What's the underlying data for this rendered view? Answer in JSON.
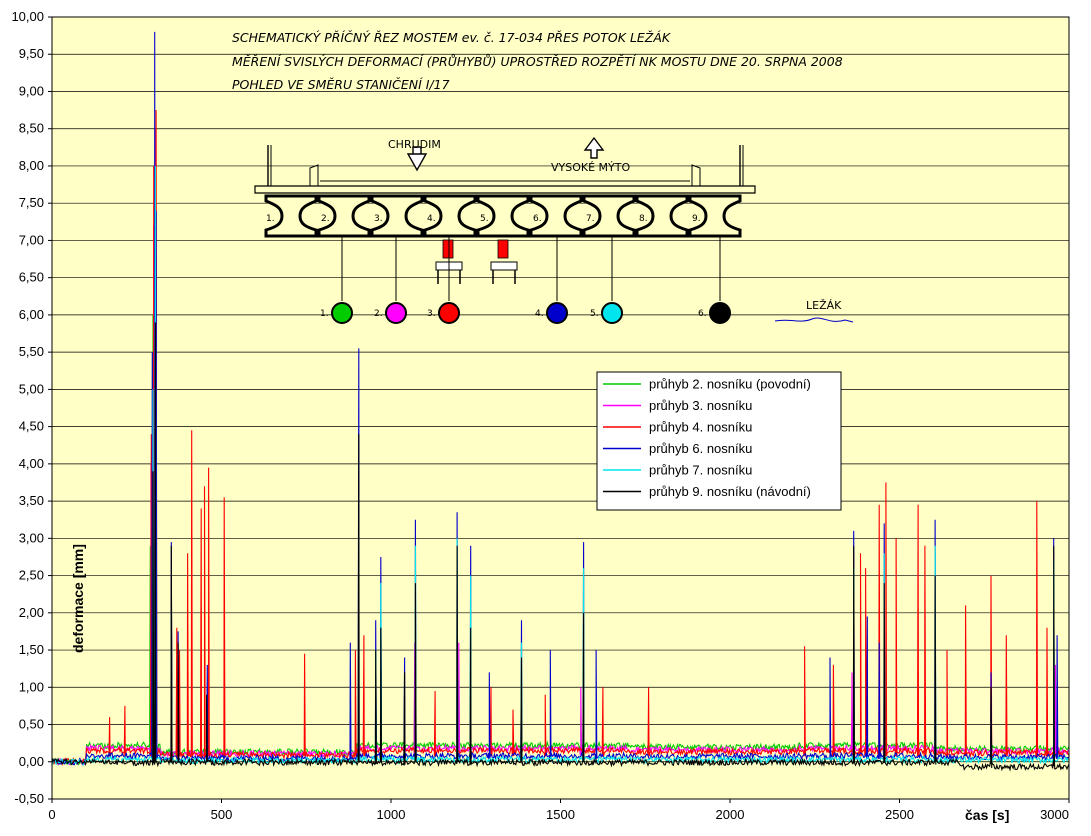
{
  "chart_data": {
    "type": "line",
    "title_lines": [
      "SCHEMATICKÝ PŘÍČNÝ ŘEZ MOSTEM ev. č. 17-034 PŘES POTOK LEŽÁK",
      "MĚŘENÍ SVISLÝCH DEFORMACÍ (PRŮHYBŮ) UPROSTŘED ROZPĚTÍ NK MOSTU DNE 20. SRPNA 2008",
      "POHLED VE SMĚRU STANIČENÍ I/17"
    ],
    "xlabel": "čas [s]",
    "ylabel": "deformace [mm]",
    "xlim": [
      0,
      3000
    ],
    "ylim": [
      -0.5,
      10.0
    ],
    "x_ticks": [
      "0",
      "500",
      "1000",
      "1500",
      "2000",
      "2500",
      "3000"
    ],
    "y_ticks": [
      "-0,50",
      "0,00",
      "0,50",
      "1,00",
      "1,50",
      "2,00",
      "2,50",
      "3,00",
      "3,50",
      "4,00",
      "4,50",
      "5,00",
      "5,50",
      "6,00",
      "6,50",
      "7,00",
      "7,50",
      "8,00",
      "8,50",
      "9,00",
      "9,50",
      "10,00"
    ],
    "grid": "horizontal",
    "legend_position": "center-right",
    "series": [
      {
        "name": "průhyb 2. nosníku (povodní)",
        "color": "#00cc00",
        "baseline": 0.22,
        "peaks": [
          [
            290,
            2.9
          ],
          [
            298,
            6.0
          ],
          [
            305,
            6.9
          ],
          [
            352,
            2.3
          ],
          [
            456,
            0.8
          ],
          [
            905,
            1.6
          ],
          [
            1070,
            1.1
          ],
          [
            1200,
            1.1
          ],
          [
            1560,
            0.6
          ],
          [
            2360,
            0.5
          ],
          [
            2455,
            0.4
          ],
          [
            2605,
            0.4
          ]
        ]
      },
      {
        "name": "průhyb 3. nosníku",
        "color": "#ff00ff",
        "baseline": 0.18,
        "peaks": [
          [
            292,
            4.0
          ],
          [
            300,
            7.2
          ],
          [
            306,
            8.5
          ],
          [
            352,
            2.5
          ],
          [
            458,
            1.0
          ],
          [
            905,
            2.4
          ],
          [
            1070,
            1.6
          ],
          [
            1200,
            1.6
          ],
          [
            1560,
            1.0
          ],
          [
            2360,
            1.2
          ],
          [
            2455,
            1.2
          ],
          [
            2605,
            1.2
          ],
          [
            2960,
            1.3
          ]
        ]
      },
      {
        "name": "průhyb 4. nosníku",
        "color": "#ff0000",
        "baseline": 0.15,
        "peaks": [
          [
            170,
            0.6
          ],
          [
            215,
            0.75
          ],
          [
            293,
            4.4
          ],
          [
            300,
            8.0
          ],
          [
            307,
            8.75
          ],
          [
            368,
            1.8
          ],
          [
            376,
            1.5
          ],
          [
            400,
            2.8
          ],
          [
            412,
            4.45
          ],
          [
            440,
            3.4
          ],
          [
            450,
            3.7
          ],
          [
            462,
            3.95
          ],
          [
            508,
            3.55
          ],
          [
            745,
            1.45
          ],
          [
            895,
            1.5
          ],
          [
            920,
            1.7
          ],
          [
            1130,
            0.95
          ],
          [
            1295,
            1.0
          ],
          [
            1360,
            0.7
          ],
          [
            1455,
            0.9
          ],
          [
            1625,
            1.0
          ],
          [
            1760,
            1.0
          ],
          [
            2220,
            1.55
          ],
          [
            2305,
            1.3
          ],
          [
            2365,
            1.25
          ],
          [
            2385,
            2.8
          ],
          [
            2400,
            2.6
          ],
          [
            2440,
            3.45
          ],
          [
            2460,
            3.75
          ],
          [
            2490,
            3.0
          ],
          [
            2555,
            3.45
          ],
          [
            2575,
            2.9
          ],
          [
            2640,
            1.5
          ],
          [
            2695,
            2.1
          ],
          [
            2770,
            2.5
          ],
          [
            2815,
            1.7
          ],
          [
            2905,
            3.5
          ],
          [
            2935,
            1.8
          ],
          [
            2955,
            1.5
          ]
        ]
      },
      {
        "name": "průhyb 6. nosníku",
        "color": "#0000cc",
        "baseline": 0.08,
        "peaks": [
          [
            296,
            5.5
          ],
          [
            303,
            9.8
          ],
          [
            307,
            7.4
          ],
          [
            352,
            2.95
          ],
          [
            372,
            1.75
          ],
          [
            458,
            1.3
          ],
          [
            880,
            1.6
          ],
          [
            905,
            5.55
          ],
          [
            955,
            1.9
          ],
          [
            970,
            2.75
          ],
          [
            1040,
            1.4
          ],
          [
            1072,
            3.25
          ],
          [
            1195,
            3.35
          ],
          [
            1235,
            2.9
          ],
          [
            1290,
            1.2
          ],
          [
            1385,
            1.9
          ],
          [
            1470,
            1.5
          ],
          [
            1568,
            2.95
          ],
          [
            1605,
            1.5
          ],
          [
            2295,
            1.4
          ],
          [
            2365,
            3.1
          ],
          [
            2405,
            1.95
          ],
          [
            2440,
            1.6
          ],
          [
            2455,
            3.2
          ],
          [
            2605,
            3.25
          ],
          [
            2770,
            1.2
          ],
          [
            2955,
            3.0
          ],
          [
            2965,
            1.7
          ]
        ]
      },
      {
        "name": "průhyb 7. nosníku",
        "color": "#00e5ee",
        "baseline": 0.03,
        "peaks": [
          [
            298,
            5.0
          ],
          [
            305,
            8.0
          ],
          [
            352,
            2.0
          ],
          [
            905,
            3.0
          ],
          [
            955,
            1.5
          ],
          [
            970,
            2.4
          ],
          [
            1072,
            2.9
          ],
          [
            1195,
            3.0
          ],
          [
            1235,
            2.5
          ],
          [
            1385,
            1.6
          ],
          [
            1568,
            2.6
          ],
          [
            2365,
            2.6
          ],
          [
            2455,
            2.8
          ],
          [
            2605,
            2.9
          ],
          [
            2955,
            2.7
          ]
        ]
      },
      {
        "name": "průhyb 9. nosníku (návodní)",
        "color": "#000000",
        "baseline": -0.01,
        "peaks": [
          [
            298,
            3.9
          ],
          [
            305,
            5.9
          ],
          [
            352,
            2.9
          ],
          [
            372,
            1.6
          ],
          [
            456,
            0.9
          ],
          [
            905,
            4.4
          ],
          [
            955,
            1.5
          ],
          [
            970,
            1.8
          ],
          [
            1040,
            1.2
          ],
          [
            1072,
            2.4
          ],
          [
            1195,
            2.9
          ],
          [
            1235,
            1.8
          ],
          [
            1385,
            1.4
          ],
          [
            1568,
            2.0
          ],
          [
            2365,
            2.9
          ],
          [
            2455,
            2.4
          ],
          [
            2605,
            2.5
          ],
          [
            2770,
            1.0
          ],
          [
            2955,
            2.9
          ]
        ]
      }
    ]
  },
  "schematic": {
    "label_chrudim": "CHRUDIM",
    "label_vysoke_myto": "VYSOKÉ MÝTO",
    "label_lezak": "LEŽÁK",
    "beam_numbers": [
      "1.",
      "2.",
      "3.",
      "4.",
      "5.",
      "6.",
      "7.",
      "8.",
      "9."
    ],
    "sensors": [
      {
        "label": "1.",
        "color": "#00cc00"
      },
      {
        "label": "2.",
        "color": "#ff00ff"
      },
      {
        "label": "3.",
        "color": "#ff0000"
      },
      {
        "label": "4.",
        "color": "#0000cc"
      },
      {
        "label": "5.",
        "color": "#00e5ee"
      },
      {
        "label": "6.",
        "color": "#000000"
      }
    ]
  },
  "colors": {
    "plot_background": "#ffffc6",
    "grid": "#000000"
  }
}
